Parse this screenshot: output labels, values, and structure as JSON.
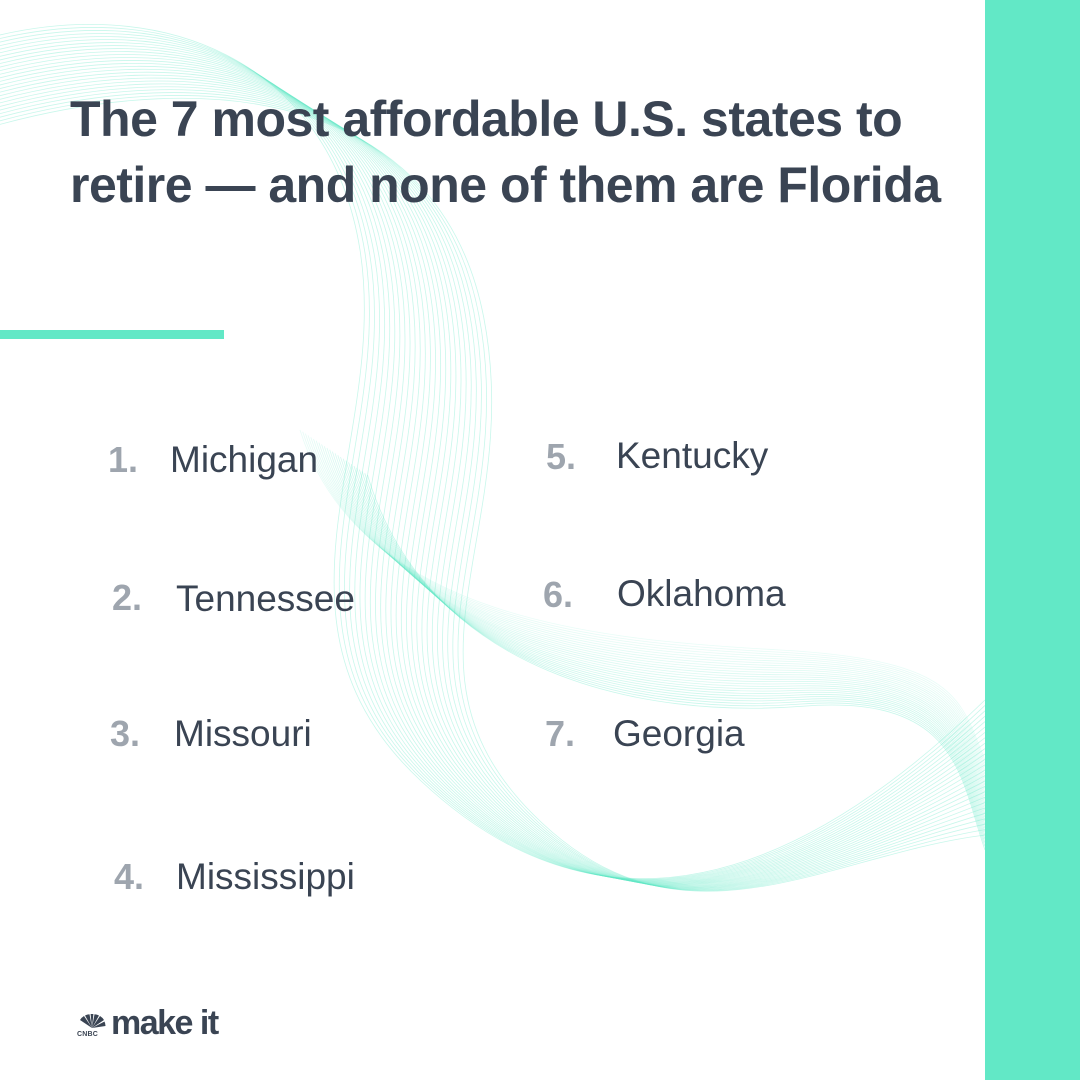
{
  "headline": "The 7 most affordable U.S. states to retire — and none of them are Florida",
  "states": [
    {
      "num": "1.",
      "name": "Michigan"
    },
    {
      "num": "2.",
      "name": "Tennessee"
    },
    {
      "num": "3.",
      "name": "Missouri"
    },
    {
      "num": "4.",
      "name": "Mississippi"
    },
    {
      "num": "5.",
      "name": "Kentucky"
    },
    {
      "num": "6.",
      "name": "Oklahoma"
    },
    {
      "num": "7.",
      "name": "Georgia"
    }
  ],
  "brand": {
    "network": "CNBC",
    "wordmark": "make it",
    "icon": "nbc-peacock-icon"
  },
  "colors": {
    "accent": "#62e8c6",
    "text": "#3a4453",
    "number": "#9ea5ae",
    "background": "#ffffff"
  }
}
